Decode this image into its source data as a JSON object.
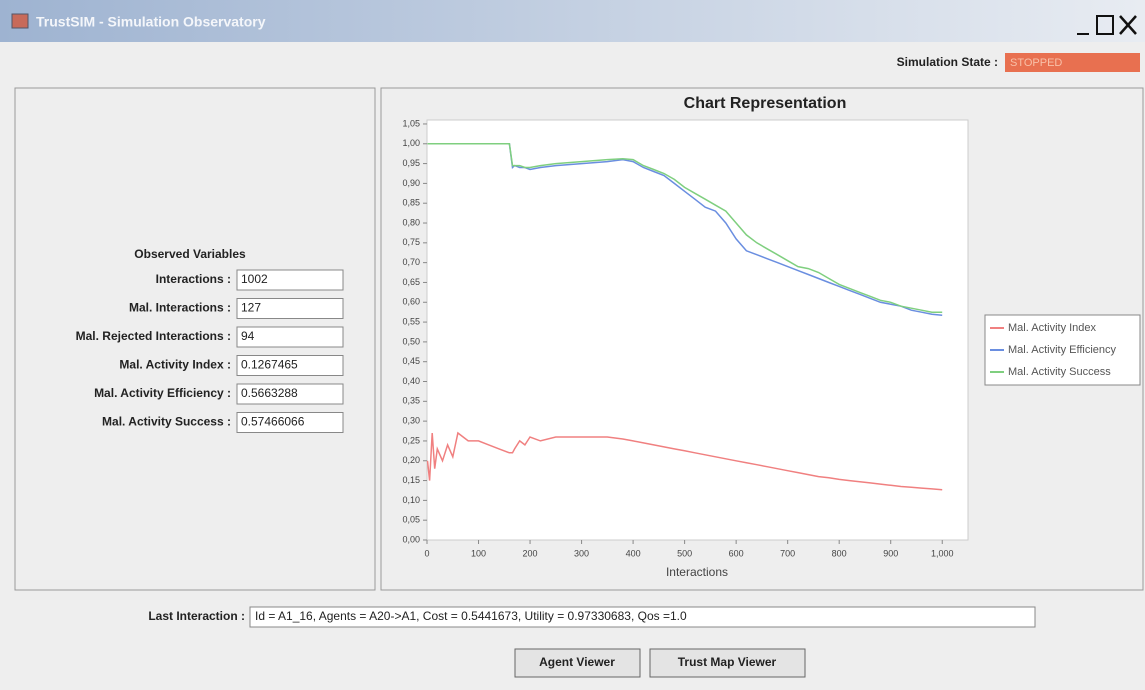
{
  "window": {
    "title": "TrustSIM - Simulation Observatory"
  },
  "state": {
    "label": "Simulation State :",
    "value": "STOPPED"
  },
  "observed": {
    "heading": "Observed Variables",
    "rows": [
      {
        "label": "Interactions :",
        "value": "1002"
      },
      {
        "label": "Mal. Interactions :",
        "value": "127"
      },
      {
        "label": "Mal. Rejected Interactions :",
        "value": "94"
      },
      {
        "label": "Mal. Activity Index :",
        "value": "0.1267465"
      },
      {
        "label": "Mal. Activity Efficiency :",
        "value": "0.5663288"
      },
      {
        "label": "Mal. Activity Success :",
        "value": "0.57466066"
      }
    ]
  },
  "last_interaction": {
    "label": "Last Interaction :",
    "value": "Id = A1_16, Agents = A20->A1, Cost = 0.5441673, Utility = 0.97330683, Qos =1.0"
  },
  "buttons": [
    "Agent Viewer",
    "Trust Map Viewer"
  ],
  "chart_data": {
    "type": "line",
    "title": "Chart Representation",
    "x_label": "Interactions",
    "x": [
      1,
      5,
      10,
      15,
      20,
      30,
      40,
      50,
      60,
      80,
      100,
      120,
      140,
      160,
      166,
      170,
      180,
      190,
      200,
      220,
      250,
      300,
      350,
      380,
      400,
      420,
      440,
      460,
      480,
      500,
      520,
      540,
      560,
      580,
      600,
      620,
      640,
      660,
      680,
      700,
      720,
      740,
      760,
      780,
      800,
      820,
      840,
      860,
      880,
      900,
      920,
      940,
      960,
      980,
      1000
    ],
    "series": [
      {
        "name": "Mal. Activity Index",
        "color": "#f08080",
        "values": [
          0.2,
          0.15,
          0.27,
          0.18,
          0.23,
          0.2,
          0.24,
          0.21,
          0.27,
          0.25,
          0.25,
          0.24,
          0.23,
          0.22,
          0.22,
          0.23,
          0.25,
          0.24,
          0.26,
          0.25,
          0.26,
          0.26,
          0.26,
          0.255,
          0.25,
          0.245,
          0.24,
          0.235,
          0.23,
          0.225,
          0.22,
          0.215,
          0.21,
          0.205,
          0.2,
          0.195,
          0.19,
          0.185,
          0.18,
          0.175,
          0.17,
          0.165,
          0.16,
          0.157,
          0.153,
          0.15,
          0.147,
          0.144,
          0.141,
          0.138,
          0.135,
          0.133,
          0.131,
          0.129,
          0.127
        ]
      },
      {
        "name": "Mal. Activity Efficiency",
        "color": "#6a8ee0",
        "values": [
          1,
          1,
          1,
          1,
          1,
          1,
          1,
          1,
          1,
          1,
          1,
          1,
          1,
          1,
          0.94,
          0.945,
          0.94,
          0.94,
          0.935,
          0.94,
          0.945,
          0.95,
          0.955,
          0.96,
          0.955,
          0.94,
          0.93,
          0.92,
          0.9,
          0.88,
          0.86,
          0.84,
          0.83,
          0.8,
          0.76,
          0.73,
          0.72,
          0.71,
          0.7,
          0.69,
          0.68,
          0.67,
          0.66,
          0.65,
          0.64,
          0.63,
          0.62,
          0.61,
          0.6,
          0.595,
          0.59,
          0.58,
          0.575,
          0.57,
          0.567
        ]
      },
      {
        "name": "Mal. Activity Success",
        "color": "#7fcf7f",
        "values": [
          1,
          1,
          1,
          1,
          1,
          1,
          1,
          1,
          1,
          1,
          1,
          1,
          1,
          1,
          0.945,
          0.945,
          0.945,
          0.94,
          0.94,
          0.945,
          0.95,
          0.955,
          0.96,
          0.962,
          0.96,
          0.945,
          0.935,
          0.925,
          0.91,
          0.89,
          0.875,
          0.86,
          0.845,
          0.83,
          0.8,
          0.77,
          0.75,
          0.735,
          0.72,
          0.705,
          0.69,
          0.685,
          0.675,
          0.66,
          0.645,
          0.635,
          0.625,
          0.615,
          0.605,
          0.6,
          0.59,
          0.585,
          0.58,
          0.575,
          0.575
        ]
      }
    ],
    "xlim": [
      0,
      1050
    ],
    "ylim": [
      0,
      1.06
    ],
    "xticks": [
      0,
      100,
      200,
      300,
      400,
      500,
      600,
      700,
      800,
      900,
      {
        "value": 1000,
        "label": "1,000"
      }
    ],
    "yticks": [
      {
        "value": 0,
        "label": "0,00"
      },
      {
        "value": 0.05,
        "label": "0,05"
      },
      {
        "value": 0.1,
        "label": "0,10"
      },
      {
        "value": 0.15,
        "label": "0,15"
      },
      {
        "value": 0.2,
        "label": "0,20"
      },
      {
        "value": 0.25,
        "label": "0,25"
      },
      {
        "value": 0.3,
        "label": "0,30"
      },
      {
        "value": 0.35,
        "label": "0,35"
      },
      {
        "value": 0.4,
        "label": "0,40"
      },
      {
        "value": 0.45,
        "label": "0,45"
      },
      {
        "value": 0.5,
        "label": "0,50"
      },
      {
        "value": 0.55,
        "label": "0,55"
      },
      {
        "value": 0.6,
        "label": "0,60"
      },
      {
        "value": 0.65,
        "label": "0,65"
      },
      {
        "value": 0.7,
        "label": "0,70"
      },
      {
        "value": 0.75,
        "label": "0,75"
      },
      {
        "value": 0.8,
        "label": "0,80"
      },
      {
        "value": 0.85,
        "label": "0,85"
      },
      {
        "value": 0.9,
        "label": "0,90"
      },
      {
        "value": 0.95,
        "label": "0,95"
      },
      {
        "value": 1,
        "label": "1,00"
      },
      {
        "value": 1.05,
        "label": "1,05"
      }
    ],
    "grid": false,
    "legend": "right"
  }
}
